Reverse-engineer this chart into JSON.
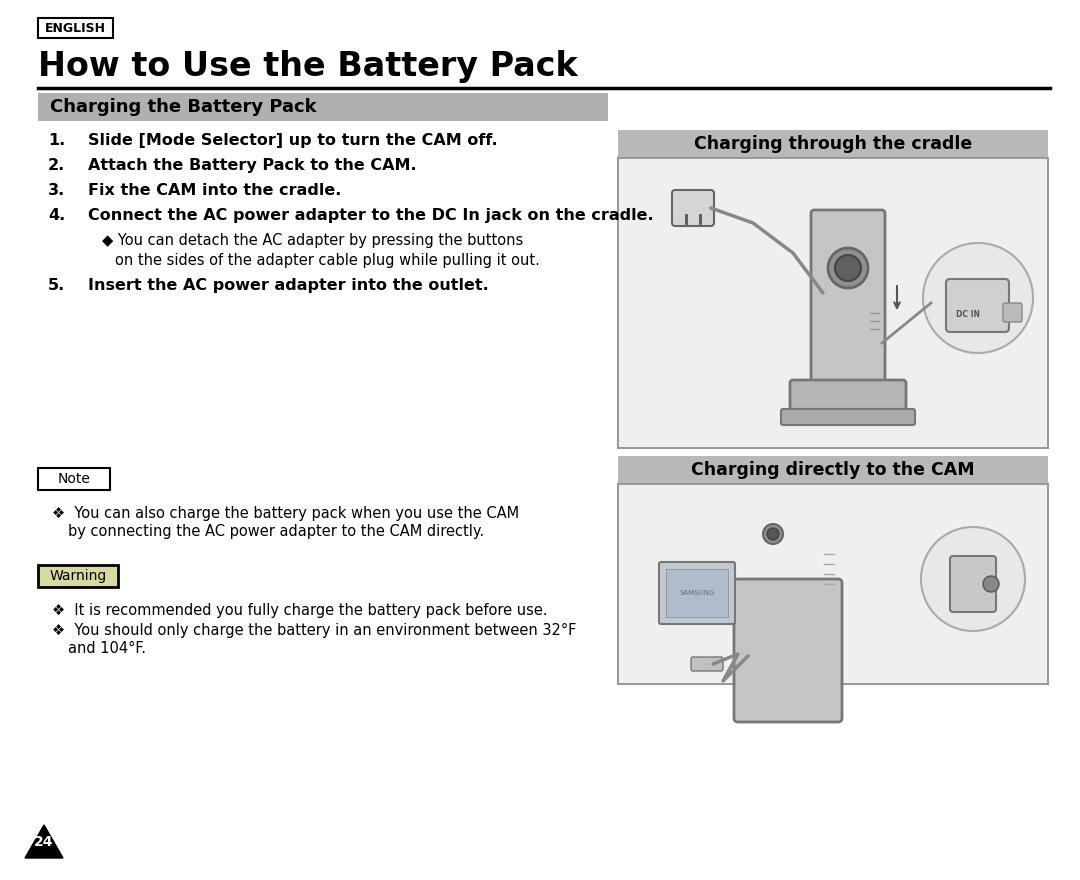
{
  "bg_color": "#ffffff",
  "page_num": "24",
  "english_label": "ENGLISH",
  "main_title": "How to Use the Battery Pack",
  "section_title": "Charging the Battery Pack",
  "section_bg": "#b0b0b0",
  "steps": [
    {
      "num": "1.",
      "text": "Slide [Mode Selector] up to turn the CAM off."
    },
    {
      "num": "2.",
      "text": "Attach the Battery Pack to the CAM."
    },
    {
      "num": "3.",
      "text": "Fix the CAM into the cradle."
    },
    {
      "num": "4.",
      "text": "Connect the AC power adapter to the DC In jack on the cradle."
    },
    {
      "num": "5.",
      "text": "Insert the AC power adapter into the outlet."
    }
  ],
  "sub_bullet_line1": "◆ You can detach the AC adapter by pressing the buttons",
  "sub_bullet_line2": "on the sides of the adapter cable plug while pulling it out.",
  "note_label": "Note",
  "note_line1": "❖  You can also charge the battery pack when you use the CAM",
  "note_line2": "by connecting the AC power adapter to the CAM directly.",
  "warning_label": "Warning",
  "warning_line1": "❖  It is recommended you fully charge the battery pack before use.",
  "warning_line2": "❖  You should only charge the battery in an environment between 32°F",
  "warning_line3": "and 104°F.",
  "right_title1": "Charging through the cradle",
  "right_title2": "Charging directly to the CAM",
  "right_title_bg": "#b8b8b8",
  "img_border": "#999999",
  "img_bg": "#f5f5f5",
  "cam_body": "#c8c8c8",
  "cam_dark": "#888888",
  "cam_light": "#e0e0e0",
  "cradle_color": "#a0a0a0"
}
